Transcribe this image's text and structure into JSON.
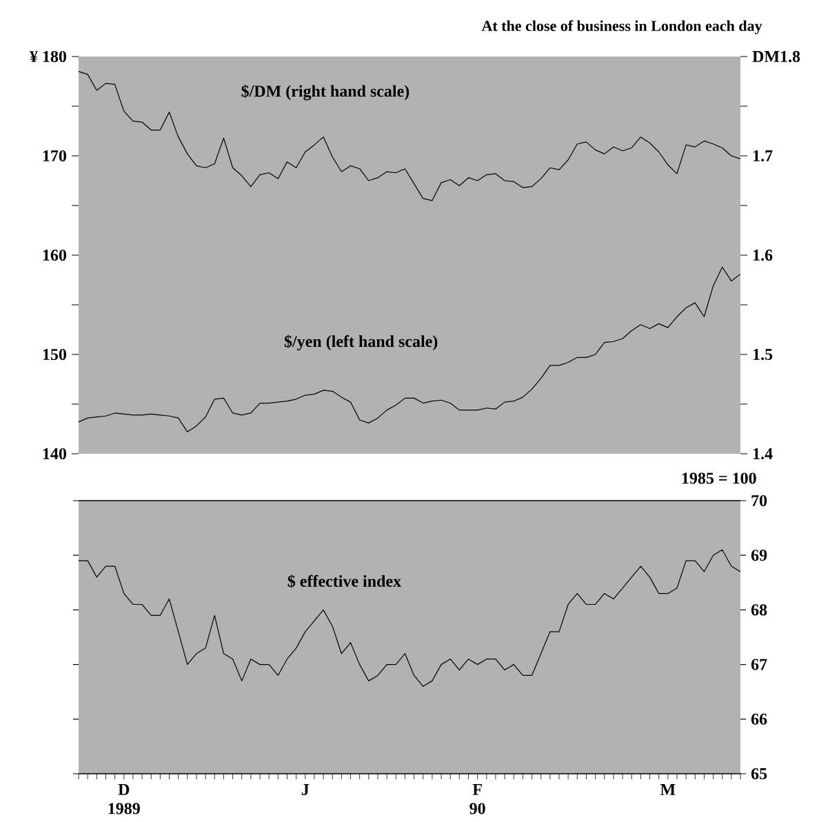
{
  "chart_data": [
    {
      "type": "line",
      "subtitle": "At the close of business in London each day",
      "tick_labels": "y",
      "line_style": "solid",
      "categories": [
        null,
        null,
        null,
        null,
        null,
        null,
        null,
        null,
        null,
        null,
        null,
        null,
        null,
        null,
        null,
        null,
        null,
        null,
        null,
        null,
        null,
        null,
        null,
        null,
        null,
        null,
        null,
        null,
        null,
        null,
        null,
        null,
        null,
        null,
        null,
        null,
        null,
        null,
        null,
        null,
        null,
        null,
        null,
        null,
        null,
        null,
        null,
        null,
        null,
        null,
        null,
        null,
        null,
        null,
        null,
        null,
        null,
        null,
        null,
        null,
        null,
        null,
        null,
        null,
        null,
        null,
        null,
        null,
        null,
        null,
        null,
        null,
        null,
        null
      ],
      "ylim": [
        140,
        180
      ],
      "yticks": [
        {
          "value": 180,
          "label": "¥ 180"
        },
        {
          "value": 175,
          "label": null
        },
        170,
        {
          "value": 165,
          "label": null
        },
        160,
        {
          "value": 155,
          "label": null
        },
        150,
        {
          "value": 145,
          "label": null
        },
        140
      ],
      "y2lim": [
        1.4,
        1.8
      ],
      "y2ticks": [
        {
          "value": 1.8,
          "label": "DM1.8"
        },
        {
          "value": 1.75,
          "label": null
        },
        1.7,
        {
          "value": 1.65,
          "label": null
        },
        1.6,
        {
          "value": 1.55,
          "label": null
        },
        1.5,
        {
          "value": 1.45,
          "label": null
        },
        1.4
      ],
      "series": [
        {
          "name": "$/yen (left hand scale)",
          "color": "#000000",
          "values": [
            143.2,
            143.6,
            143.7,
            143.8,
            144.1,
            144.0,
            143.9,
            143.9,
            144.0,
            143.9,
            143.8,
            143.6,
            142.2,
            142.8,
            143.7,
            145.5,
            145.6,
            144.1,
            143.9,
            144.1,
            145.1,
            145.1,
            145.2,
            145.3,
            145.5,
            145.9,
            146.0,
            146.4,
            146.3,
            145.7,
            145.2,
            143.4,
            143.1,
            143.6,
            144.4,
            144.9,
            145.6,
            145.6,
            145.1,
            145.3,
            145.4,
            145.1,
            144.4,
            144.4,
            144.4,
            144.6,
            144.5,
            145.2,
            145.3,
            145.7,
            146.5,
            147.6,
            148.9,
            148.9,
            149.2,
            149.7,
            149.7,
            150.0,
            151.2,
            151.3,
            151.6,
            152.4,
            153.0,
            152.6,
            153.1,
            152.7,
            153.8,
            154.7,
            155.2,
            153.8,
            156.9,
            158.8,
            157.4,
            158.1
          ]
        },
        {
          "name": "$/DM (right hand scale)",
          "color": "#000000",
          "axis": "y2",
          "values": [
            1.785,
            1.782,
            1.766,
            1.773,
            1.772,
            1.745,
            1.735,
            1.734,
            1.726,
            1.726,
            1.744,
            1.719,
            1.702,
            1.69,
            1.688,
            1.692,
            1.718,
            1.688,
            1.68,
            1.669,
            1.681,
            1.683,
            1.677,
            1.694,
            1.688,
            1.704,
            1.711,
            1.719,
            1.699,
            1.684,
            1.69,
            1.687,
            1.675,
            1.678,
            1.684,
            1.683,
            1.687,
            1.672,
            1.657,
            1.655,
            1.673,
            1.676,
            1.67,
            1.678,
            1.675,
            1.681,
            1.682,
            1.675,
            1.674,
            1.668,
            1.669,
            1.677,
            1.688,
            1.686,
            1.696,
            1.712,
            1.714,
            1.706,
            1.702,
            1.709,
            1.705,
            1.708,
            1.719,
            1.713,
            1.704,
            1.691,
            1.682,
            1.711,
            1.709,
            1.715,
            1.712,
            1.708,
            1.7,
            1.697
          ]
        }
      ]
    },
    {
      "type": "line",
      "ylabel": "1985 = 100",
      "line_style": "solid",
      "annotations": [
        "1989",
        "90"
      ],
      "categories": [
        null,
        null,
        null,
        null,
        null,
        "D",
        null,
        null,
        null,
        null,
        null,
        null,
        null,
        null,
        null,
        null,
        null,
        null,
        null,
        null,
        null,
        null,
        null,
        null,
        null,
        "J",
        null,
        null,
        null,
        null,
        null,
        null,
        null,
        null,
        null,
        null,
        null,
        null,
        null,
        null,
        null,
        null,
        null,
        null,
        "F",
        null,
        null,
        null,
        null,
        null,
        null,
        null,
        null,
        null,
        null,
        null,
        null,
        null,
        null,
        null,
        null,
        null,
        null,
        null,
        null,
        "M",
        null,
        null,
        null,
        null,
        null,
        null,
        null,
        null
      ],
      "ylim": [
        65,
        70
      ],
      "yticks": [
        65,
        66,
        67,
        68,
        69,
        70
      ],
      "series": [
        {
          "name": "$ effective index",
          "color": "#000000",
          "values": [
            68.9,
            68.9,
            68.6,
            68.8,
            68.8,
            68.3,
            68.1,
            68.1,
            67.9,
            67.9,
            68.2,
            67.6,
            67.0,
            67.2,
            67.3,
            67.9,
            67.2,
            67.1,
            66.7,
            67.1,
            67.0,
            67.0,
            66.8,
            67.1,
            67.3,
            67.6,
            67.8,
            68.0,
            67.7,
            67.2,
            67.4,
            67.0,
            66.7,
            66.8,
            67.0,
            67.0,
            67.2,
            66.8,
            66.6,
            66.7,
            67.0,
            67.1,
            66.9,
            67.1,
            67.0,
            67.1,
            67.1,
            66.9,
            67.0,
            66.8,
            66.8,
            67.2,
            67.6,
            67.6,
            68.1,
            68.3,
            68.1,
            68.1,
            68.3,
            68.2,
            68.4,
            68.6,
            68.8,
            68.6,
            68.3,
            68.3,
            68.4,
            68.9,
            68.9,
            68.7,
            69.0,
            69.1,
            68.8,
            68.7
          ]
        }
      ]
    }
  ]
}
